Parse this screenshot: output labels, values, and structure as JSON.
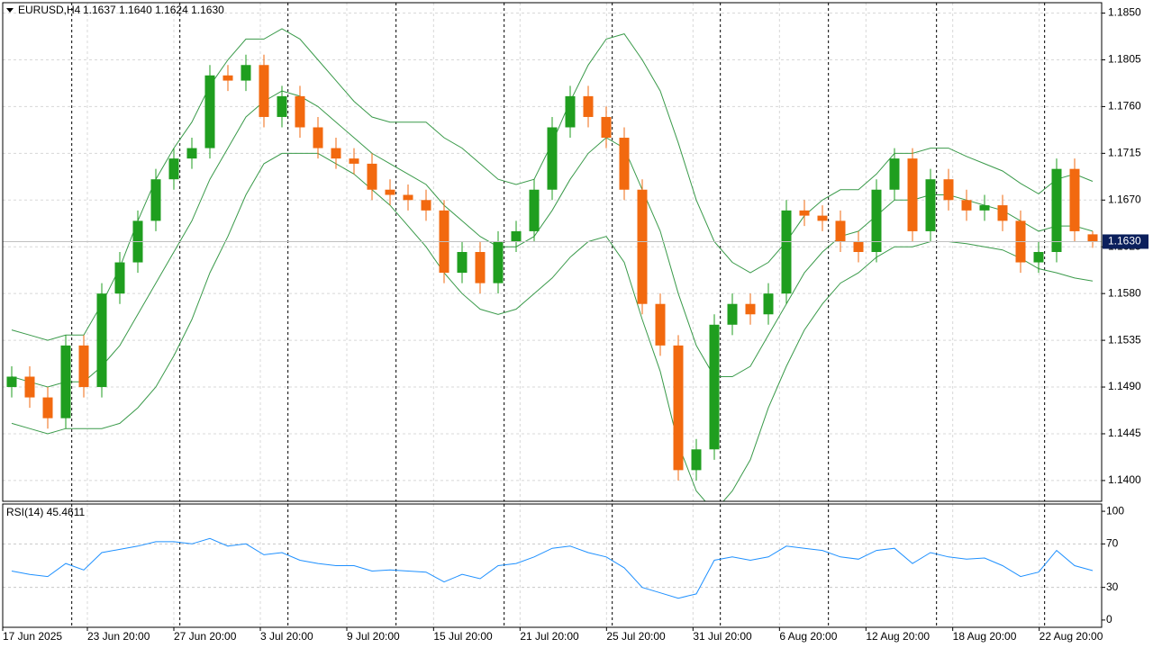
{
  "chart_data": {
    "type": "candlestick",
    "title": "EURUSD,H4",
    "ohlc_text": "1.1637 1.1640 1.1624 1.1630",
    "up_color": "#1f9e1f",
    "down_color": "#f2690f",
    "grid": true,
    "x": [
      3,
      9,
      15,
      21,
      27,
      33,
      39,
      45,
      51,
      57,
      63,
      69,
      75,
      81,
      87,
      93,
      99,
      105,
      111,
      117,
      123,
      129,
      135,
      141,
      147,
      153,
      159,
      165,
      171,
      177,
      183,
      189,
      195,
      201,
      207,
      213,
      219,
      225,
      231,
      237,
      243,
      249,
      255,
      261,
      267,
      273,
      279,
      285,
      291,
      297,
      303,
      309,
      315,
      321,
      327,
      333,
      339,
      345,
      351,
      357,
      363
    ],
    "open": [
      1.149,
      1.15,
      1.148,
      1.146,
      1.153,
      1.149,
      1.158,
      1.161,
      1.165,
      1.169,
      1.171,
      1.172,
      1.179,
      1.1785,
      1.18,
      1.175,
      1.177,
      1.174,
      1.172,
      1.171,
      1.1705,
      1.168,
      1.1675,
      1.167,
      1.166,
      1.16,
      1.162,
      1.159,
      1.163,
      1.164,
      1.168,
      1.174,
      1.177,
      1.175,
      1.173,
      1.168,
      1.157,
      1.153,
      1.141,
      1.143,
      1.155,
      1.157,
      1.156,
      1.158,
      1.166,
      1.1655,
      1.165,
      1.163,
      1.162,
      1.168,
      1.171,
      1.164,
      1.169,
      1.167,
      1.166,
      1.1665,
      1.165,
      1.161,
      1.162,
      1.17,
      1.1637
    ],
    "high": [
      1.151,
      1.151,
      1.149,
      1.154,
      1.154,
      1.159,
      1.162,
      1.166,
      1.17,
      1.172,
      1.173,
      1.18,
      1.18,
      1.181,
      1.181,
      1.178,
      1.178,
      1.175,
      1.173,
      1.172,
      1.1715,
      1.169,
      1.1685,
      1.168,
      1.167,
      1.163,
      1.163,
      1.164,
      1.165,
      1.169,
      1.175,
      1.178,
      1.178,
      1.176,
      1.174,
      1.169,
      1.158,
      1.154,
      1.144,
      1.156,
      1.158,
      1.158,
      1.159,
      1.167,
      1.167,
      1.1665,
      1.166,
      1.164,
      1.169,
      1.172,
      1.172,
      1.17,
      1.17,
      1.168,
      1.1675,
      1.1675,
      1.166,
      1.163,
      1.171,
      1.171,
      1.164
    ],
    "low": [
      1.148,
      1.147,
      1.145,
      1.145,
      1.148,
      1.148,
      1.157,
      1.16,
      1.164,
      1.168,
      1.17,
      1.171,
      1.1775,
      1.1775,
      1.174,
      1.174,
      1.173,
      1.171,
      1.17,
      1.1695,
      1.167,
      1.1665,
      1.166,
      1.165,
      1.159,
      1.159,
      1.158,
      1.158,
      1.162,
      1.163,
      1.167,
      1.173,
      1.174,
      1.172,
      1.167,
      1.156,
      1.152,
      1.14,
      1.14,
      1.142,
      1.154,
      1.155,
      1.155,
      1.157,
      1.1645,
      1.164,
      1.162,
      1.161,
      1.161,
      1.167,
      1.163,
      1.163,
      1.166,
      1.165,
      1.165,
      1.164,
      1.16,
      1.16,
      1.161,
      1.163,
      1.1624
    ],
    "close": [
      1.15,
      1.148,
      1.146,
      1.153,
      1.149,
      1.158,
      1.161,
      1.165,
      1.169,
      1.171,
      1.172,
      1.179,
      1.1785,
      1.18,
      1.175,
      1.177,
      1.174,
      1.172,
      1.171,
      1.1705,
      1.168,
      1.1675,
      1.167,
      1.166,
      1.16,
      1.162,
      1.159,
      1.163,
      1.164,
      1.168,
      1.174,
      1.177,
      1.175,
      1.173,
      1.168,
      1.157,
      1.153,
      1.141,
      1.143,
      1.155,
      1.157,
      1.156,
      1.158,
      1.166,
      1.1655,
      1.165,
      1.163,
      1.162,
      1.168,
      1.171,
      1.164,
      1.169,
      1.167,
      1.166,
      1.1665,
      1.165,
      1.161,
      1.162,
      1.17,
      1.164,
      1.163
    ],
    "xlim": [
      0,
      366
    ],
    "xticks": [
      {
        "value": 0,
        "label": "17 Jun 2025"
      },
      {
        "value": 28.2,
        "label": "23 Jun 20:00"
      },
      {
        "value": 57,
        "label": "27 Jun 20:00"
      },
      {
        "value": 85.8,
        "label": "3 Jul 20:00"
      },
      {
        "value": 114.6,
        "label": "9 Jul 20:00"
      },
      {
        "value": 143.5,
        "label": "15 Jul 20:00"
      },
      {
        "value": 172.3,
        "label": "21 Jul 20:00"
      },
      {
        "value": 201.1,
        "label": "25 Jul 20:00"
      },
      {
        "value": 229.9,
        "label": "31 Jul 20:00"
      },
      {
        "value": 258.7,
        "label": "6 Aug 20:00"
      },
      {
        "value": 287.5,
        "label": "12 Aug 20:00"
      },
      {
        "value": 316.4,
        "label": "18 Aug 20:00"
      },
      {
        "value": 345.2,
        "label": "22 Aug 20:00"
      }
    ],
    "period_separators": [
      23,
      59,
      95,
      131,
      167,
      203,
      239,
      275,
      311,
      347
    ],
    "ylim": [
      1.138,
      1.186
    ],
    "yticks": [
      {
        "value": 1.185,
        "label": "1.1850"
      },
      {
        "value": 1.1805,
        "label": "1.1805"
      },
      {
        "value": 1.176,
        "label": "1.1760"
      },
      {
        "value": 1.1715,
        "label": "1.1715"
      },
      {
        "value": 1.167,
        "label": "1.1670"
      },
      {
        "value": 1.1625,
        "label": "1.1625"
      },
      {
        "value": 1.158,
        "label": "1.1580"
      },
      {
        "value": 1.1535,
        "label": "1.1535"
      },
      {
        "value": 1.149,
        "label": "1.1490"
      },
      {
        "value": 1.1445,
        "label": "1.1445"
      },
      {
        "value": 1.14,
        "label": "1.1400"
      }
    ],
    "current_price": {
      "value": 1.163,
      "label": "1.1630"
    },
    "bands": {
      "color": "#3a9a4a",
      "upper": [
        1.1545,
        1.154,
        1.1535,
        1.154,
        1.154,
        1.157,
        1.1605,
        1.165,
        1.169,
        1.172,
        1.1745,
        1.178,
        1.1805,
        1.1825,
        1.1825,
        1.1835,
        1.1825,
        1.1805,
        1.1785,
        1.1765,
        1.175,
        1.1745,
        1.1745,
        1.1745,
        1.173,
        1.172,
        1.1705,
        1.169,
        1.1685,
        1.169,
        1.1725,
        1.1765,
        1.18,
        1.1825,
        1.183,
        1.1805,
        1.1775,
        1.1725,
        1.167,
        1.163,
        1.161,
        1.16,
        1.161,
        1.163,
        1.1655,
        1.167,
        1.168,
        1.168,
        1.1695,
        1.1715,
        1.1715,
        1.172,
        1.172,
        1.1712,
        1.1705,
        1.1698,
        1.1686,
        1.1676,
        1.169,
        1.1695,
        1.1688
      ],
      "middle": [
        1.15,
        1.1495,
        1.149,
        1.1495,
        1.1495,
        1.151,
        1.153,
        1.156,
        1.159,
        1.162,
        1.165,
        1.169,
        1.172,
        1.175,
        1.1765,
        1.1775,
        1.177,
        1.176,
        1.1745,
        1.173,
        1.1715,
        1.1705,
        1.1695,
        1.1685,
        1.1665,
        1.165,
        1.1635,
        1.1625,
        1.1625,
        1.1635,
        1.166,
        1.169,
        1.1715,
        1.173,
        1.172,
        1.168,
        1.164,
        1.158,
        1.153,
        1.15,
        1.15,
        1.151,
        1.154,
        1.157,
        1.16,
        1.162,
        1.1635,
        1.164,
        1.1655,
        1.167,
        1.167,
        1.1675,
        1.1675,
        1.167,
        1.1665,
        1.166,
        1.165,
        1.164,
        1.1645,
        1.1645,
        1.164
      ],
      "lower": [
        1.1455,
        1.145,
        1.1445,
        1.145,
        1.145,
        1.145,
        1.1455,
        1.147,
        1.149,
        1.152,
        1.1555,
        1.16,
        1.1635,
        1.1675,
        1.1705,
        1.1715,
        1.1715,
        1.1715,
        1.1705,
        1.1695,
        1.168,
        1.1665,
        1.1645,
        1.1625,
        1.16,
        1.158,
        1.1565,
        1.156,
        1.1565,
        1.158,
        1.1595,
        1.1615,
        1.163,
        1.1635,
        1.161,
        1.1555,
        1.1505,
        1.1435,
        1.139,
        1.137,
        1.139,
        1.142,
        1.147,
        1.151,
        1.1545,
        1.157,
        1.159,
        1.16,
        1.1615,
        1.1625,
        1.1625,
        1.163,
        1.163,
        1.1628,
        1.1625,
        1.1622,
        1.1614,
        1.1604,
        1.16,
        1.1595,
        1.1592
      ]
    },
    "rsi": {
      "title": "RSI(14) 45.4611",
      "color": "#1e90ff",
      "values": [
        45,
        42,
        40,
        52,
        46,
        62,
        65,
        68,
        72,
        72,
        70,
        75,
        68,
        70,
        60,
        62,
        55,
        52,
        50,
        50,
        45,
        46,
        45,
        44,
        35,
        42,
        38,
        50,
        52,
        58,
        66,
        68,
        62,
        58,
        48,
        30,
        25,
        20,
        24,
        55,
        58,
        55,
        58,
        68,
        66,
        64,
        58,
        56,
        64,
        66,
        52,
        62,
        58,
        56,
        57,
        50,
        40,
        44,
        64,
        50,
        45.4611
      ],
      "ylim": [
        -6.7,
        106.7
      ],
      "yticks": [
        100,
        70,
        30,
        0
      ],
      "levels": [
        70,
        30
      ]
    }
  }
}
